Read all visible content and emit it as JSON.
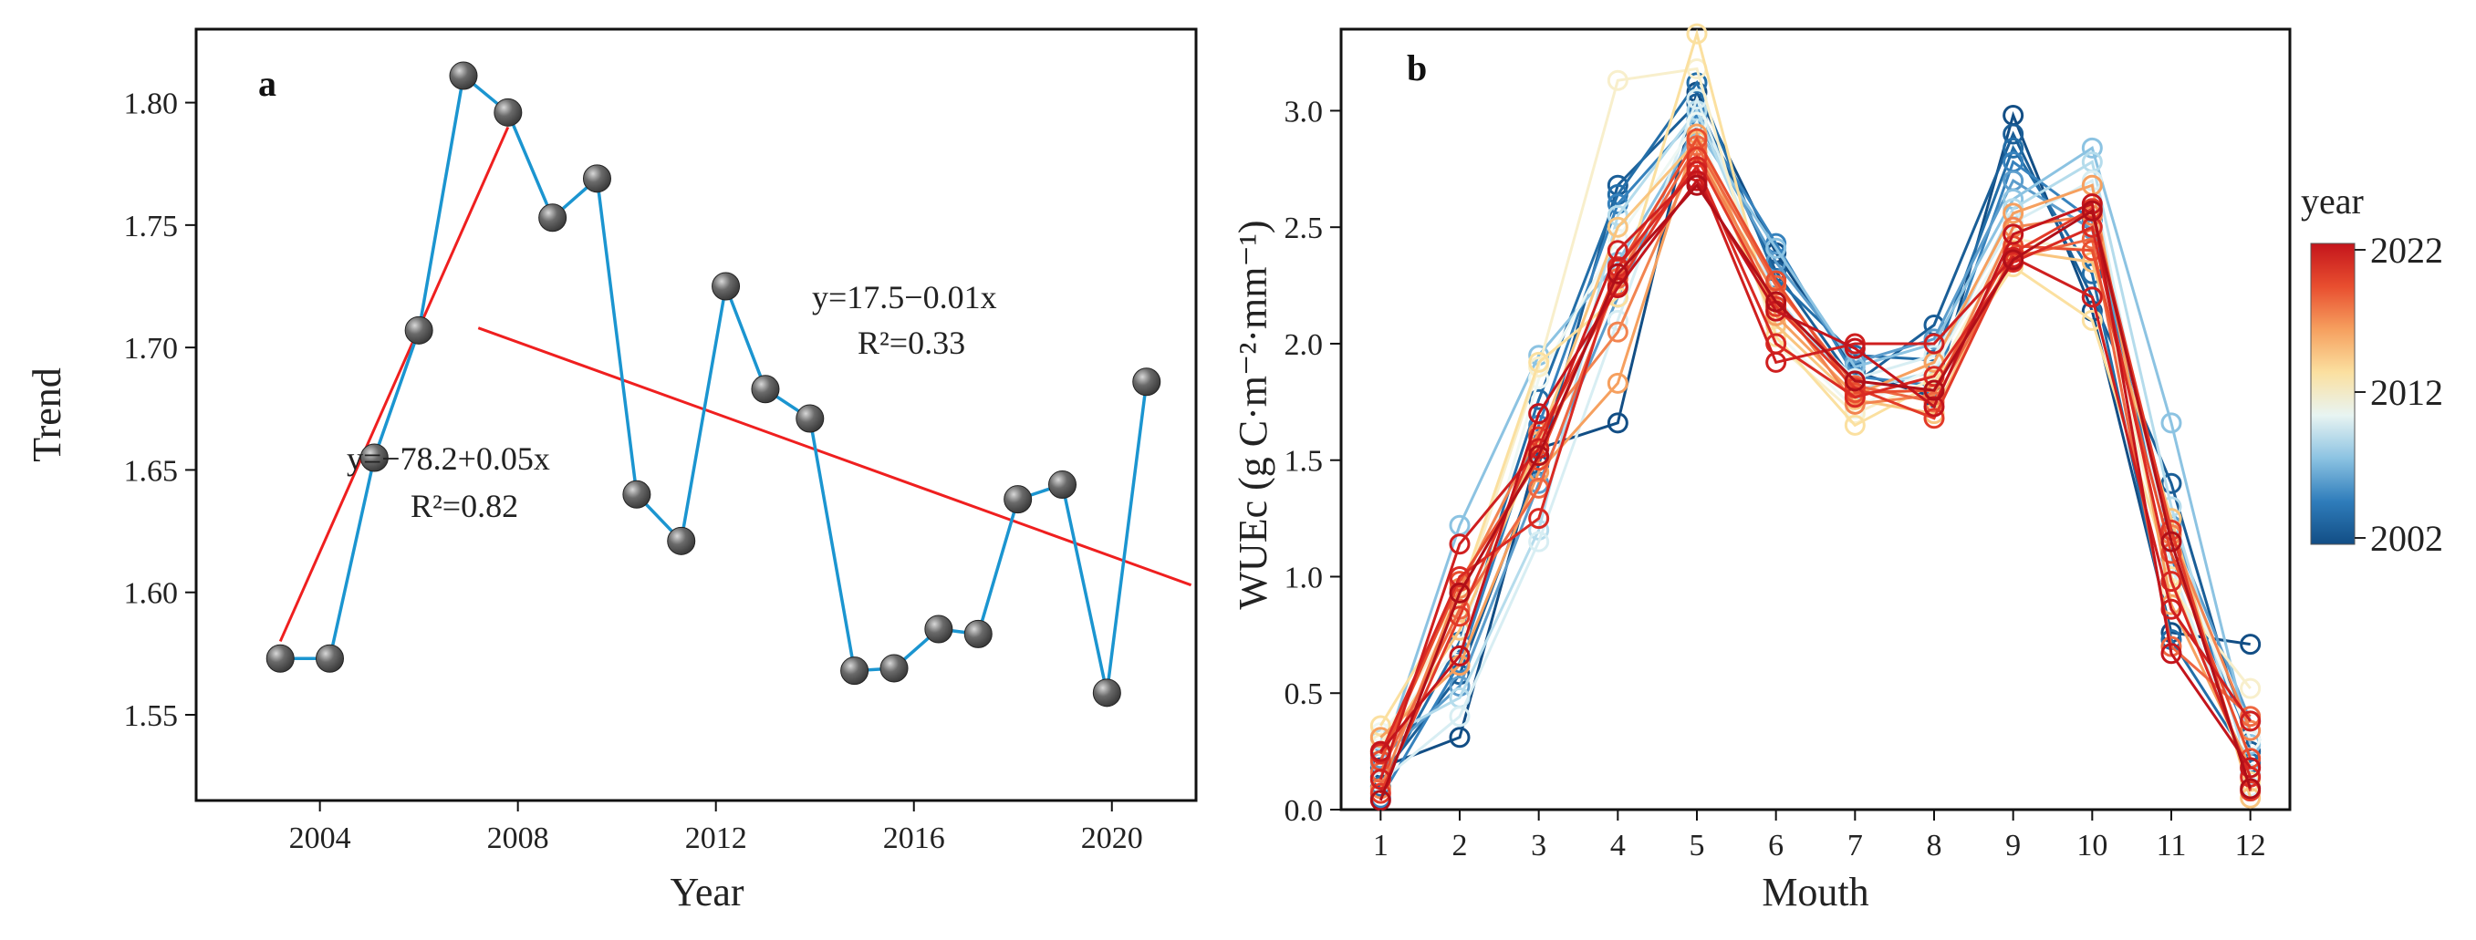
{
  "chart_data": [
    {
      "id": "a",
      "panel_label": "a",
      "type": "line",
      "title": "",
      "xlabel": "Year",
      "ylabel": "Trend",
      "xlim": [
        2001.5,
        2021.7
      ],
      "ylim": [
        1.515,
        1.83
      ],
      "xticks": [
        2004,
        2008,
        2012,
        2016,
        2020
      ],
      "yticks": [
        1.55,
        1.6,
        1.65,
        1.7,
        1.75,
        1.8
      ],
      "ytick_labels": [
        "1.55",
        "1.60",
        "1.65",
        "1.70",
        "1.75",
        "1.80"
      ],
      "grid": false,
      "series": [
        {
          "name": "Trend",
          "color": "#1b95d0",
          "marker_color": "#3a3a3a",
          "x": [
            2003.2,
            2004.2,
            2005.1,
            2006.0,
            2006.9,
            2007.8,
            2008.7,
            2009.6,
            2010.4,
            2011.3,
            2012.2,
            2013.0,
            2013.9,
            2014.8,
            2015.6,
            2016.5,
            2017.3,
            2018.1,
            2019.0,
            2019.9,
            2020.7
          ],
          "y": [
            1.573,
            1.573,
            1.655,
            1.707,
            1.811,
            1.796,
            1.753,
            1.769,
            1.64,
            1.621,
            1.725,
            1.683,
            1.671,
            1.568,
            1.569,
            1.585,
            1.583,
            1.638,
            1.644,
            1.559,
            1.686
          ]
        }
      ],
      "fit_lines": [
        {
          "name": "fit-2003-2008",
          "color": "#ef1f1f",
          "x": [
            2003.2,
            2007.8
          ],
          "y": [
            1.58,
            1.79
          ],
          "equation": "y=−78.2+0.05x",
          "r2_label": "R²=0.82"
        },
        {
          "name": "fit-2007-2021",
          "color": "#ef1f1f",
          "x": [
            2007.2,
            2021.6
          ],
          "y": [
            1.708,
            1.603
          ],
          "equation": "y=17.5−0.01x",
          "r2_label": "R²=0.33"
        }
      ]
    },
    {
      "id": "b",
      "panel_label": "b",
      "type": "line",
      "title": "",
      "xlabel": "Mouth",
      "ylabel": "WUEc (g C·m⁻²·mm⁻¹)",
      "x": [
        1,
        2,
        3,
        4,
        5,
        6,
        7,
        8,
        9,
        10,
        11,
        12
      ],
      "xticks": [
        1,
        2,
        3,
        4,
        5,
        6,
        7,
        8,
        9,
        10,
        11,
        12
      ],
      "xlim": [
        0.5,
        12.5
      ],
      "ylim": [
        0,
        3.35
      ],
      "yticks": [
        0.0,
        0.5,
        1.0,
        1.5,
        2.0,
        2.5,
        3.0
      ],
      "ytick_labels": [
        "0.0",
        "0.5",
        "1.0",
        "1.5",
        "2.0",
        "2.5",
        "3.0"
      ],
      "grid": false,
      "legend": {
        "title": "year",
        "type": "colorbar",
        "placement": "right",
        "min_label": "2002",
        "mid_label": "2012",
        "max_label": "2022",
        "colors": [
          "#124e85",
          "#2f7dbb",
          "#8cc3e2",
          "#e8f4f2",
          "#fbe0a0",
          "#f6a05f",
          "#e84e2f",
          "#c4151c"
        ]
      },
      "series": [
        {
          "name": "2002",
          "color": "#124e85",
          "values": [
            0.18,
            0.31,
            1.55,
            1.66,
            3.08,
            2.39,
            1.88,
            1.77,
            2.98,
            2.14,
            0.76,
            0.71
          ]
        },
        {
          "name": "2003",
          "color": "#1a5e97",
          "values": [
            0.14,
            0.58,
            1.48,
            2.68,
            3.03,
            2.31,
            1.83,
            2.08,
            2.9,
            2.2,
            1.4,
            0.25
          ]
        },
        {
          "name": "2004",
          "color": "#236ea8",
          "values": [
            0.1,
            0.72,
            1.76,
            2.64,
            3.12,
            2.28,
            1.95,
            1.93,
            2.84,
            2.3,
            0.73,
            0.2
          ]
        },
        {
          "name": "2005",
          "color": "#3682bd",
          "values": [
            0.05,
            0.63,
            1.65,
            2.6,
            2.98,
            2.43,
            1.86,
            1.82,
            2.78,
            2.53,
            1.08,
            0.3
          ]
        },
        {
          "name": "2006",
          "color": "#5c9dcc",
          "values": [
            0.22,
            0.53,
            1.4,
            2.2,
            2.96,
            2.35,
            1.92,
            2.02,
            2.7,
            2.49,
            1.22,
            0.38
          ]
        },
        {
          "name": "2007",
          "color": "#8cc3e2",
          "values": [
            0.2,
            1.22,
            1.95,
            2.35,
            2.92,
            2.41,
            1.9,
            2.0,
            2.62,
            2.84,
            1.66,
            0.28
          ]
        },
        {
          "name": "2008",
          "color": "#b5dcec",
          "values": [
            0.3,
            0.48,
            1.2,
            2.55,
            3.0,
            2.2,
            1.8,
            1.88,
            2.58,
            2.78,
            1.3,
            0.15
          ]
        },
        {
          "name": "2009",
          "color": "#d8eef3",
          "values": [
            0.12,
            0.4,
            1.15,
            2.1,
            3.05,
            2.18,
            1.85,
            1.95,
            2.52,
            2.7,
            1.05,
            0.1
          ]
        },
        {
          "name": "2010",
          "color": "#eef7f3",
          "values": [
            0.33,
            0.7,
            1.85,
            2.45,
            2.95,
            2.05,
            1.72,
            1.9,
            2.48,
            2.6,
            1.15,
            0.3
          ]
        },
        {
          "name": "2011",
          "color": "#f8efcc",
          "values": [
            0.28,
            0.88,
            1.9,
            3.13,
            3.18,
            2.0,
            1.7,
            1.85,
            2.45,
            2.4,
            0.95,
            0.52
          ]
        },
        {
          "name": "2012",
          "color": "#fbe0a0",
          "values": [
            0.36,
            0.92,
            1.92,
            2.2,
            3.33,
            2.03,
            1.65,
            1.83,
            2.33,
            2.1,
            1.0,
            0.12
          ]
        },
        {
          "name": "2013",
          "color": "#f9c57f",
          "values": [
            0.25,
            0.77,
            1.58,
            2.5,
            2.87,
            2.08,
            1.76,
            1.7,
            2.4,
            2.35,
            1.25,
            0.05
          ]
        },
        {
          "name": "2014",
          "color": "#f6a05f",
          "values": [
            0.31,
            0.62,
            1.45,
            1.83,
            2.9,
            2.12,
            1.78,
            1.92,
            2.56,
            2.68,
            0.88,
            0.18
          ]
        },
        {
          "name": "2015",
          "color": "#f28450",
          "values": [
            0.09,
            0.95,
            1.62,
            2.05,
            2.82,
            2.2,
            1.74,
            1.78,
            2.5,
            2.55,
            1.18,
            0.34
          ]
        },
        {
          "name": "2016",
          "color": "#ee6842",
          "values": [
            0.16,
            0.86,
            1.38,
            2.28,
            2.85,
            2.25,
            1.82,
            1.75,
            2.37,
            2.45,
            0.7,
            0.4
          ]
        },
        {
          "name": "2017",
          "color": "#e84e2f",
          "values": [
            0.21,
            0.98,
            1.5,
            2.32,
            2.88,
            2.27,
            1.79,
            1.8,
            2.42,
            2.4,
            1.1,
            0.22
          ]
        },
        {
          "name": "2018",
          "color": "#e23a28",
          "values": [
            0.07,
            0.83,
            1.6,
            2.25,
            2.8,
            2.16,
            1.81,
            1.68,
            2.39,
            2.58,
            1.2,
            0.08
          ]
        },
        {
          "name": "2019",
          "color": "#d92a23",
          "values": [
            0.24,
            1.0,
            1.25,
            2.33,
            2.76,
            2.0,
            1.77,
            1.86,
            2.35,
            2.5,
            0.98,
            0.14
          ]
        },
        {
          "name": "2020",
          "color": "#cf1f1f",
          "values": [
            0.13,
            1.14,
            1.55,
            2.4,
            2.74,
            1.92,
            2.0,
            2.0,
            2.37,
            2.2,
            0.86,
            0.38
          ]
        },
        {
          "name": "2021",
          "color": "#c4151c",
          "values": [
            0.25,
            0.66,
            1.7,
            2.24,
            2.7,
            2.14,
            1.98,
            1.73,
            2.47,
            2.6,
            0.67,
            0.18
          ]
        },
        {
          "name": "2022",
          "color": "#b10f18",
          "values": [
            0.04,
            0.93,
            1.52,
            2.3,
            2.68,
            2.18,
            1.84,
            1.8,
            2.36,
            2.57,
            1.15,
            0.09
          ]
        }
      ]
    }
  ]
}
